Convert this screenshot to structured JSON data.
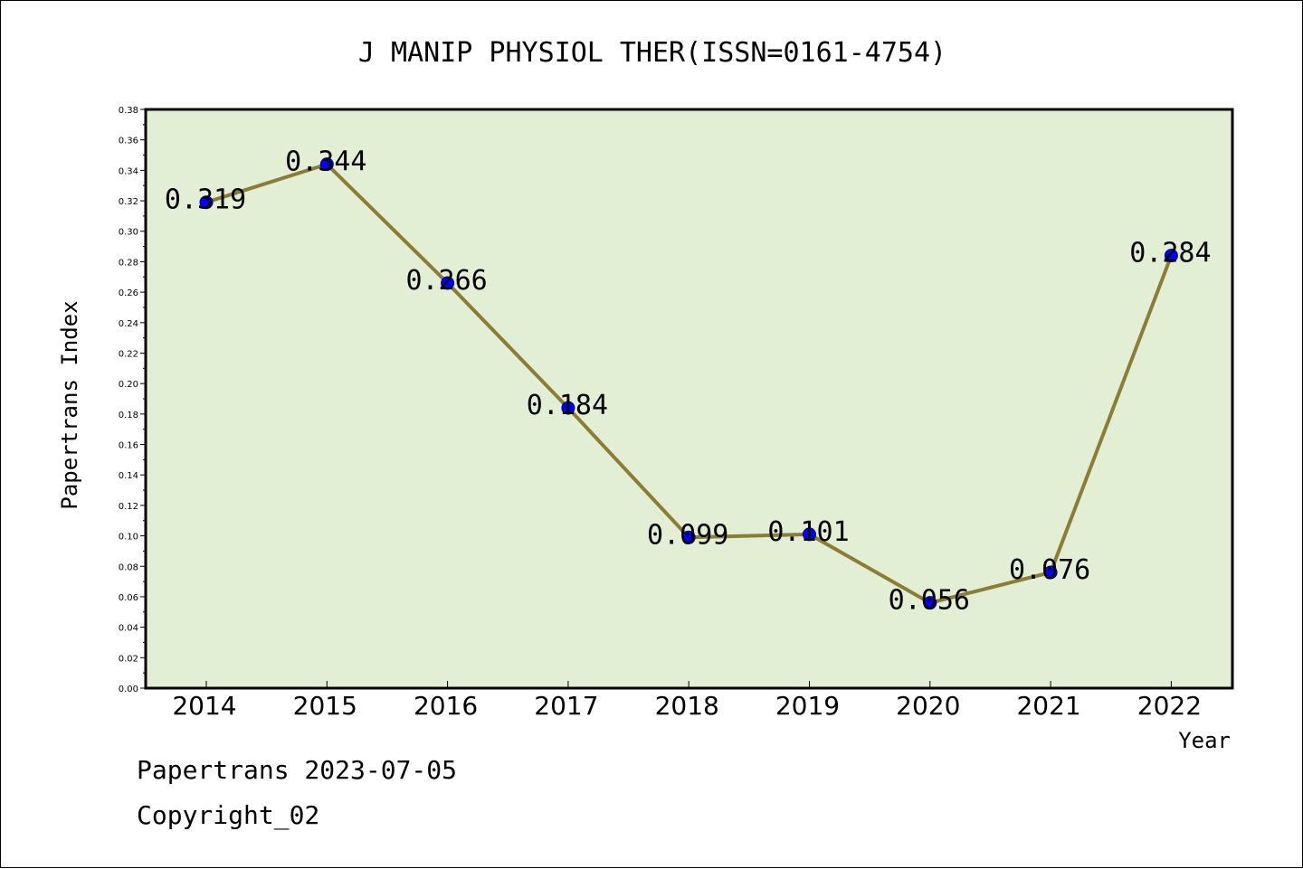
{
  "footer": {
    "line1": "Papertrans 2023-07-05",
    "line2": "Copyright_02"
  },
  "colors": {
    "plot_background": "#e2efd4",
    "line": "#8b7d35",
    "marker": "#0000ff",
    "marker_edge": "#00007a"
  },
  "chart_data": {
    "type": "line",
    "title": "J MANIP PHYSIOL THER(ISSN=0161-4754)",
    "xlabel": "Year",
    "ylabel": "Papertrans Index",
    "ylim": [
      0,
      0.38
    ],
    "y_ticks": [
      "0.00",
      "0.02",
      "0.04",
      "0.06",
      "0.08",
      "0.10",
      "0.12",
      "0.14",
      "0.16",
      "0.18",
      "0.20",
      "0.22",
      "0.24",
      "0.26",
      "0.28",
      "0.30",
      "0.32",
      "0.34",
      "0.36",
      "0.38"
    ],
    "grid": false,
    "categories": [
      "2014",
      "2015",
      "2016",
      "2017",
      "2018",
      "2019",
      "2020",
      "2021",
      "2022"
    ],
    "series": [
      {
        "values": [
          0.319,
          0.344,
          0.266,
          0.184,
          0.099,
          0.101,
          0.056,
          0.076,
          0.284
        ],
        "labels": [
          "0.319",
          "0.344",
          "0.266",
          "0.184",
          "0.099",
          "0.101",
          "0.056",
          "0.076",
          "0.284"
        ]
      }
    ]
  }
}
